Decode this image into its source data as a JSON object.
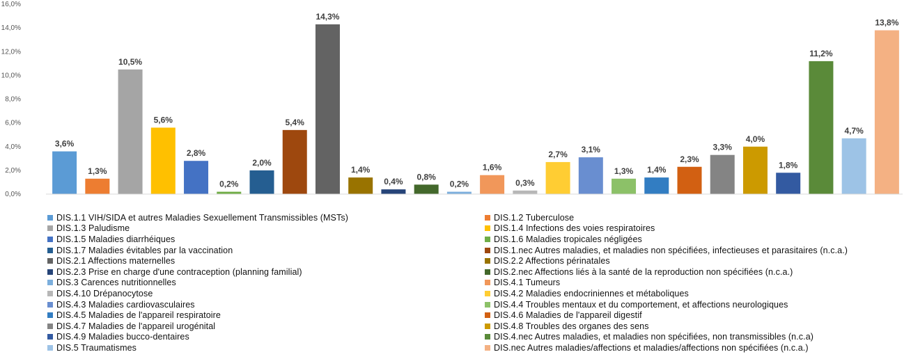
{
  "chart_data": {
    "type": "bar",
    "ylim": [
      0,
      16
    ],
    "yticks": [
      "0,0%",
      "2,0%",
      "4,0%",
      "6,0%",
      "8,0%",
      "10,0%",
      "12,0%",
      "14,0%",
      "16,0%"
    ],
    "grid": false,
    "legend_position": "bottom",
    "categories": [
      "DIS.1.1 VIH/SIDA et autres Maladies Sexuellement Transmissibles (MSTs)",
      "DIS.1.2 Tuberculose",
      "DIS.1.3 Paludisme",
      "DIS.1.4 Infections des voies respiratoires",
      "DIS.1.5 Maladies diarrhéiques",
      "DIS.1.6 Maladies tropicales négligées",
      "DIS.1.7 Maladies évitables par la vaccination",
      "DIS.1.nec Autres maladies, et maladies non spécifiées, infectieuses et parasitaires (n.c.a.)",
      "DIS.2.1 Affections maternelles",
      "DIS.2.2 Affections périnatales",
      "DIS.2.3 Prise en charge d'une contraception (planning familial)",
      "DIS.2.nec Affections liés à la santé de la reproduction non spécifiées (n.c.a.)",
      "DIS.3 Carences nutritionnelles",
      "DIS.4.1 Tumeurs",
      "DIS.4.10 Drépanocytose",
      "DIS.4.2 Maladies endocriniennes et métaboliques",
      "DIS.4.3 Maladies cardiovasculaires",
      "DIS.4.4 Troubles mentaux et du comportement, et affections neurologiques",
      "DIS.4.5 Maladies de l'appareil respiratoire",
      "DIS.4.6 Maladies de l'appareil digestif",
      "DIS.4.7 Maladies de l'appareil urogénital",
      "DIS.4.8 Troubles des organes des sens",
      "DIS.4.9 Maladies bucco-dentaires",
      "DIS.4.nec Autres maladies, et maladies non spécifiées, non transmissibles (n.c.a)",
      "DIS.5 Traumatismes",
      "DIS.nec Autres maladies/affections et maladies/affections non spécifiées (n.c.a.)"
    ],
    "values": [
      3.6,
      1.3,
      10.5,
      5.6,
      2.8,
      0.2,
      2.0,
      5.4,
      14.3,
      1.4,
      0.4,
      0.8,
      0.2,
      1.6,
      0.3,
      2.7,
      3.1,
      1.3,
      1.4,
      2.3,
      3.3,
      4.0,
      1.8,
      11.2,
      4.7,
      13.8
    ],
    "value_labels": [
      "3,6%",
      "1,3%",
      "10,5%",
      "5,6%",
      "2,8%",
      "0,2%",
      "2,0%",
      "5,4%",
      "14,3%",
      "1,4%",
      "0,4%",
      "0,8%",
      "0,2%",
      "1,6%",
      "0,3%",
      "2,7%",
      "3,1%",
      "1,3%",
      "1,4%",
      "2,3%",
      "3,3%",
      "4,0%",
      "1,8%",
      "11,2%",
      "4,7%",
      "13,8%"
    ],
    "colors": [
      "#5B9BD5",
      "#ED7D31",
      "#A5A5A5",
      "#FFC000",
      "#4472C4",
      "#70AD47",
      "#255E91",
      "#9E480E",
      "#636363",
      "#997300",
      "#264478",
      "#43682B",
      "#7CAFDD",
      "#F1975A",
      "#B7B7B7",
      "#FFCD33",
      "#698ED0",
      "#8CC168",
      "#327DC2",
      "#D26012",
      "#848484",
      "#CC9A00",
      "#335AA1",
      "#5A8A39",
      "#9DC3E6",
      "#F4B183"
    ]
  }
}
